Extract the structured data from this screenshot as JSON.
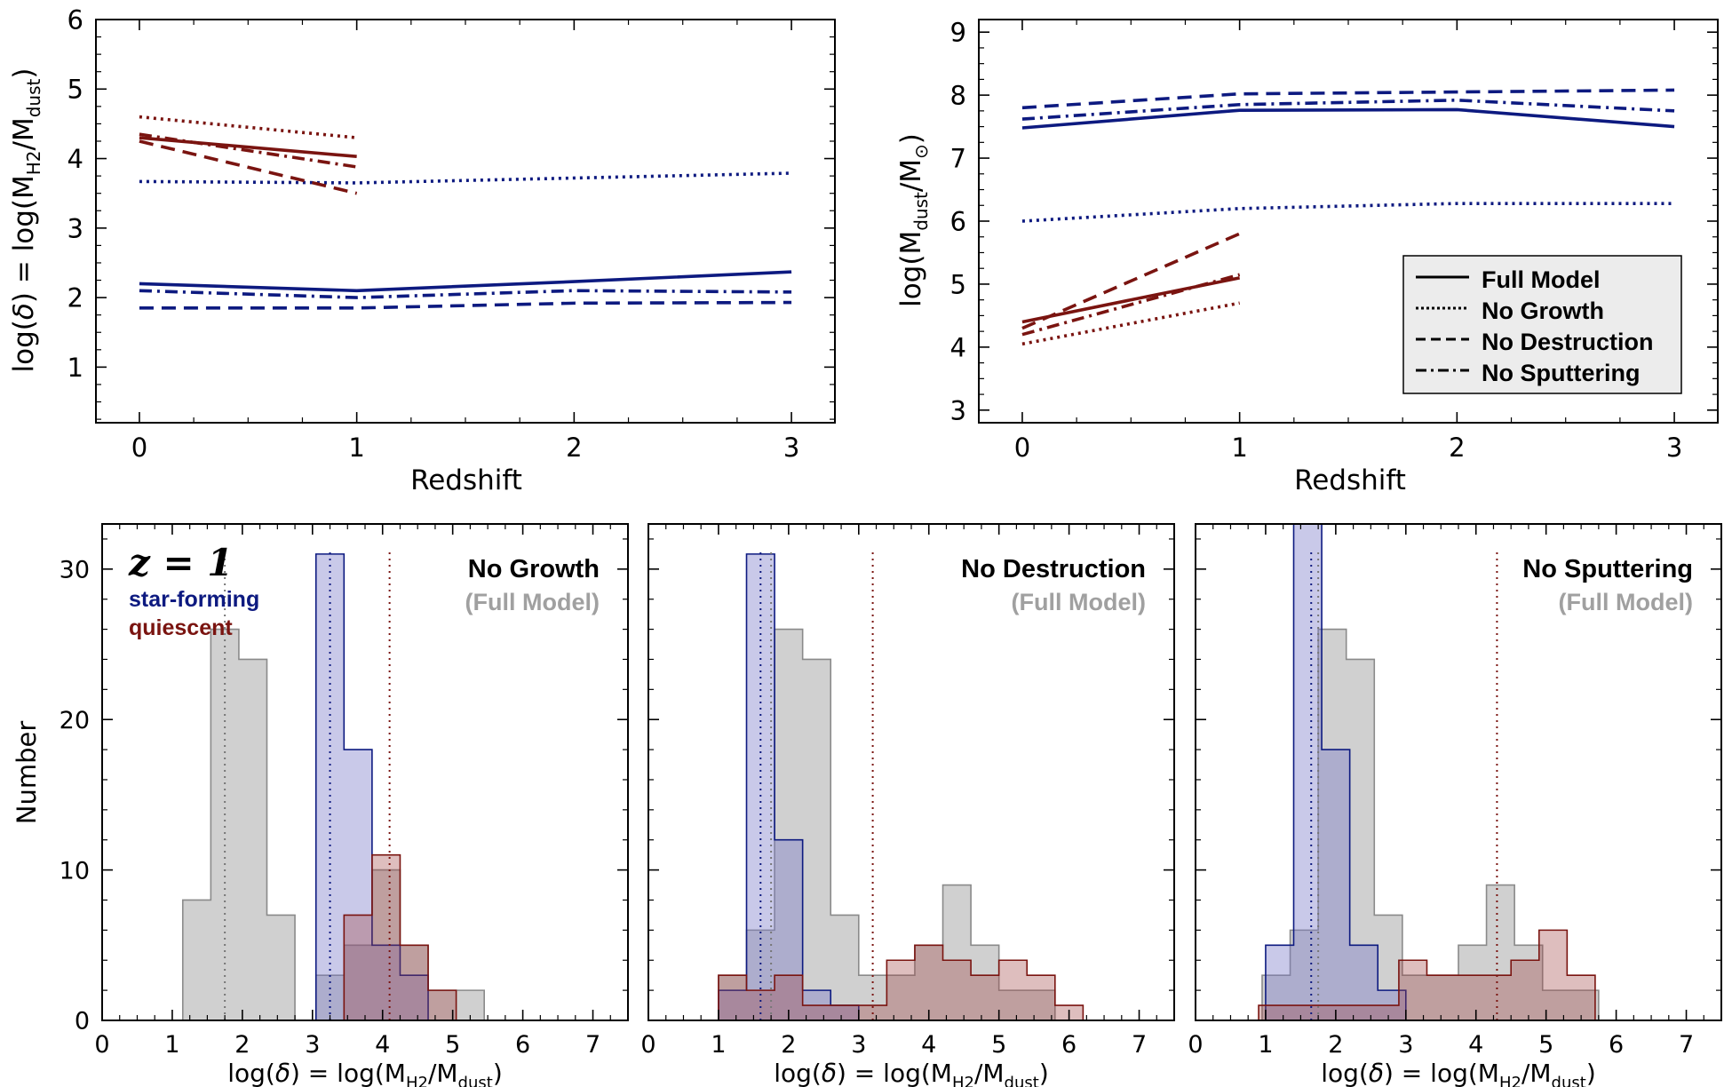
{
  "colors": {
    "star_forming": "#0d1a80",
    "quiescent": "#7a1410",
    "full_model": "#9a9a9a",
    "sf_fill": "rgba(120,120,200,0.40)",
    "q_fill": "rgba(160,70,70,0.35)",
    "grey_fill": "rgba(150,150,150,0.45)"
  },
  "chart_data": [
    {
      "type": "line",
      "title": "",
      "xlabel": "Redshift",
      "ylabel_parts": [
        "log(",
        "δ",
        ") = log(M",
        "H2",
        "/M",
        "dust",
        ")"
      ],
      "xlim": [
        -0.2,
        3.2
      ],
      "ylim": [
        0.2,
        6.0
      ],
      "xticks": [
        0,
        1,
        2,
        3
      ],
      "yticks": [
        1,
        2,
        3,
        4,
        5,
        6
      ],
      "series": [
        {
          "name": "star-forming Full Model",
          "group": "sf",
          "style": "solid",
          "x": [
            0,
            1,
            2,
            3
          ],
          "values": [
            2.2,
            2.1,
            2.23,
            2.37
          ]
        },
        {
          "name": "star-forming No Growth",
          "group": "sf",
          "style": "dotted",
          "x": [
            0,
            1,
            2,
            3
          ],
          "values": [
            3.67,
            3.65,
            3.72,
            3.79
          ]
        },
        {
          "name": "star-forming No Destruction",
          "group": "sf",
          "style": "dashed",
          "x": [
            0,
            1,
            2,
            3
          ],
          "values": [
            1.85,
            1.85,
            1.92,
            1.93
          ]
        },
        {
          "name": "star-forming No Sputtering",
          "group": "sf",
          "style": "dashdot",
          "x": [
            0,
            1,
            2,
            3
          ],
          "values": [
            2.1,
            2.0,
            2.1,
            2.08
          ]
        },
        {
          "name": "quiescent Full Model",
          "group": "q",
          "style": "solid",
          "x": [
            0,
            1
          ],
          "values": [
            4.3,
            4.03
          ]
        },
        {
          "name": "quiescent No Growth",
          "group": "q",
          "style": "dotted",
          "x": [
            0,
            1
          ],
          "values": [
            4.6,
            4.3
          ]
        },
        {
          "name": "quiescent No Destruction",
          "group": "q",
          "style": "dashed",
          "x": [
            0,
            1
          ],
          "values": [
            4.25,
            3.5
          ]
        },
        {
          "name": "quiescent No Sputtering",
          "group": "q",
          "style": "dashdot",
          "x": [
            0,
            1
          ],
          "values": [
            4.35,
            3.88
          ]
        }
      ]
    },
    {
      "type": "line",
      "title": "",
      "xlabel": "Redshift",
      "ylabel_parts": [
        "log(M",
        "dust",
        "/M",
        "⊙",
        ")"
      ],
      "xlim": [
        -0.2,
        3.2
      ],
      "ylim": [
        2.8,
        9.2
      ],
      "xticks": [
        0,
        1,
        2,
        3
      ],
      "yticks": [
        3,
        4,
        5,
        6,
        7,
        8,
        9
      ],
      "legend": {
        "placement": "lower-right",
        "entries": [
          {
            "label": "Full Model",
            "style": "solid"
          },
          {
            "label": "No Growth",
            "style": "dotted"
          },
          {
            "label": "No Destruction",
            "style": "dashed"
          },
          {
            "label": "No Sputtering",
            "style": "dashdot"
          }
        ]
      },
      "series": [
        {
          "name": "star-forming Full Model",
          "group": "sf",
          "style": "solid",
          "x": [
            0,
            1,
            2,
            3
          ],
          "values": [
            7.48,
            7.76,
            7.77,
            7.5
          ]
        },
        {
          "name": "star-forming No Growth",
          "group": "sf",
          "style": "dotted",
          "x": [
            0,
            1,
            2,
            3
          ],
          "values": [
            6.0,
            6.2,
            6.28,
            6.28
          ]
        },
        {
          "name": "star-forming No Destruction",
          "group": "sf",
          "style": "dashed",
          "x": [
            0,
            1,
            2,
            3
          ],
          "values": [
            7.8,
            8.02,
            8.05,
            8.08
          ]
        },
        {
          "name": "star-forming No Sputtering",
          "group": "sf",
          "style": "dashdot",
          "x": [
            0,
            1,
            2,
            3
          ],
          "values": [
            7.62,
            7.85,
            7.92,
            7.75
          ]
        },
        {
          "name": "quiescent Full Model",
          "group": "q",
          "style": "solid",
          "x": [
            0,
            1
          ],
          "values": [
            4.4,
            5.1
          ]
        },
        {
          "name": "quiescent No Growth",
          "group": "q",
          "style": "dotted",
          "x": [
            0,
            1
          ],
          "values": [
            4.05,
            4.7
          ]
        },
        {
          "name": "quiescent No Destruction",
          "group": "q",
          "style": "dashed",
          "x": [
            0,
            1
          ],
          "values": [
            4.3,
            5.8
          ]
        },
        {
          "name": "quiescent No Sputtering",
          "group": "q",
          "style": "dashdot",
          "x": [
            0,
            1
          ],
          "values": [
            4.2,
            5.15
          ]
        }
      ]
    },
    {
      "type": "histogram",
      "title": "No Growth",
      "subtitle": "(Full Model)",
      "redshift_label": "z = 1",
      "class_labels": [
        "star-forming",
        "quiescent"
      ],
      "xlabel_parts": [
        "log(",
        "δ",
        ") = log(M",
        "H2",
        "/M",
        "dust",
        ")"
      ],
      "ylabel": "Number",
      "xlim": [
        0,
        7.5
      ],
      "ylim": [
        0,
        33
      ],
      "xticks": [
        0,
        1,
        2,
        3,
        4,
        5,
        6,
        7
      ],
      "yticks": [
        0,
        10,
        20,
        30
      ],
      "bin_width": 0.4,
      "series": [
        {
          "name": "Full Model (grey)",
          "group": "grey",
          "bin_edges_start": 1.15,
          "counts": [
            8,
            26,
            24,
            7
          ]
        },
        {
          "name": "star-forming",
          "group": "sf",
          "bin_edges_start": 3.05,
          "counts": [
            31,
            18,
            5,
            3
          ]
        },
        {
          "name": "quiescent",
          "group": "q",
          "bin_edges_start": 3.45,
          "counts": [
            7,
            11,
            5,
            2
          ]
        }
      ],
      "extra_grey": [
        {
          "start": 3.05,
          "counts": [
            3,
            5,
            10,
            5,
            2,
            2
          ]
        }
      ],
      "medians": [
        {
          "group": "grey",
          "value": 1.75
        },
        {
          "group": "sf",
          "value": 3.25
        },
        {
          "group": "q",
          "value": 4.1
        }
      ]
    },
    {
      "type": "histogram",
      "title": "No Destruction",
      "subtitle": "(Full Model)",
      "xlabel_parts": [
        "log(",
        "δ",
        ") = log(M",
        "H2",
        "/M",
        "dust",
        ")"
      ],
      "xlim": [
        0,
        7.5
      ],
      "ylim": [
        0,
        33
      ],
      "xticks": [
        0,
        1,
        2,
        3,
        4,
        5,
        6,
        7
      ],
      "yticks": [
        0,
        10,
        20,
        30
      ],
      "bin_width": 0.4,
      "series": [
        {
          "name": "Full Model (grey)",
          "group": "grey",
          "bin_edges_start": 1.0,
          "counts": [
            3,
            6,
            26,
            24,
            7,
            3,
            3,
            5,
            9,
            5,
            2,
            2
          ]
        },
        {
          "name": "star-forming",
          "group": "sf",
          "bin_edges_start": 1.0,
          "counts": [
            2,
            31,
            12,
            2,
            1
          ]
        },
        {
          "name": "quiescent",
          "group": "q",
          "bin_edges_start": 1.0,
          "counts": [
            3,
            2,
            3,
            1,
            1,
            1,
            4,
            5,
            4,
            3,
            4,
            3,
            1
          ]
        }
      ],
      "medians": [
        {
          "group": "grey",
          "value": 1.75
        },
        {
          "group": "sf",
          "value": 1.6
        },
        {
          "group": "q",
          "value": 3.2
        }
      ]
    },
    {
      "type": "histogram",
      "title": "No Sputtering",
      "subtitle": "(Full Model)",
      "xlabel_parts": [
        "log(",
        "δ",
        ") = log(M",
        "H2",
        "/M",
        "dust",
        ")"
      ],
      "xlim": [
        0,
        7.5
      ],
      "ylim": [
        0,
        33
      ],
      "xticks": [
        0,
        1,
        2,
        3,
        4,
        5,
        6,
        7
      ],
      "yticks": [
        0,
        10,
        20,
        30
      ],
      "bin_width": 0.4,
      "series": [
        {
          "name": "Full Model (grey)",
          "group": "grey",
          "bin_edges_start": 0.95,
          "counts": [
            3,
            6,
            26,
            24,
            7,
            3,
            3,
            5,
            9,
            5,
            2,
            2
          ]
        },
        {
          "name": "star-forming",
          "group": "sf",
          "bin_edges_start": 1.0,
          "counts": [
            5,
            33,
            18,
            5,
            2
          ]
        },
        {
          "name": "quiescent",
          "group": "q",
          "bin_edges_start": 0.9,
          "counts": [
            1,
            1,
            1,
            1,
            1,
            4,
            3,
            3,
            3,
            4,
            6,
            3
          ]
        }
      ],
      "medians": [
        {
          "group": "grey",
          "value": 1.75
        },
        {
          "group": "sf",
          "value": 1.65
        },
        {
          "group": "q",
          "value": 4.3
        }
      ]
    }
  ]
}
